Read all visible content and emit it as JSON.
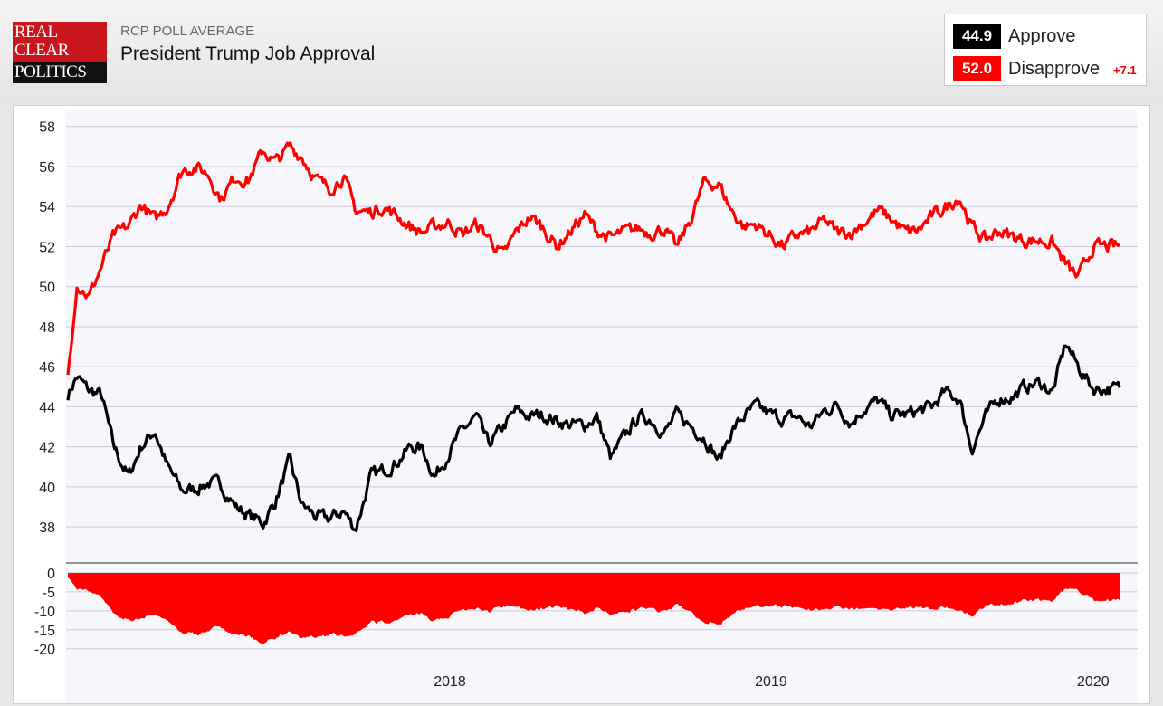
{
  "header": {
    "logo_lines": [
      "REAL",
      "CLEAR",
      "POLITICS"
    ],
    "subtitle": "RCP POLL AVERAGE",
    "title": "President Trump Job Approval"
  },
  "legend": {
    "approve": {
      "value": "44.9",
      "label": "Approve",
      "color": "#000000"
    },
    "disapprove": {
      "value": "52.0",
      "label": "Disapprove",
      "color": "#ff0000"
    },
    "spread": "+7.1"
  },
  "colors": {
    "approve": "#000000",
    "disapprove": "#ff0000",
    "spread_fill": "#ff0000",
    "grid": "#c8c8dc",
    "plot_bg": "#f7f7fb"
  },
  "chart_data": [
    {
      "type": "line",
      "title": "President Trump Job Approval",
      "x_tick_labels": [
        "2018",
        "2019",
        "2020"
      ],
      "y_ticks": [
        38,
        40,
        42,
        44,
        46,
        48,
        50,
        52,
        54,
        56,
        58
      ],
      "ylim": [
        36.2,
        58.8
      ],
      "grid": true,
      "legend": "top-right",
      "x": [
        "2017-01-22",
        "2017-02-01",
        "2017-02-15",
        "2017-03-01",
        "2017-03-15",
        "2017-04-01",
        "2017-04-15",
        "2017-05-01",
        "2017-05-15",
        "2017-06-01",
        "2017-06-15",
        "2017-07-01",
        "2017-07-15",
        "2017-08-01",
        "2017-08-15",
        "2017-09-01",
        "2017-09-15",
        "2017-10-01",
        "2017-10-15",
        "2017-11-01",
        "2017-11-15",
        "2017-12-01",
        "2017-12-15",
        "2018-01-01",
        "2018-01-15",
        "2018-02-01",
        "2018-02-15",
        "2018-03-01",
        "2018-03-15",
        "2018-04-01",
        "2018-04-15",
        "2018-05-01",
        "2018-05-15",
        "2018-06-01",
        "2018-06-15",
        "2018-07-01",
        "2018-07-15",
        "2018-08-01",
        "2018-08-15",
        "2018-09-01",
        "2018-09-15",
        "2018-10-01",
        "2018-10-15",
        "2018-11-01",
        "2018-11-15",
        "2018-12-01",
        "2018-12-15",
        "2019-01-01",
        "2019-01-15",
        "2019-02-01",
        "2019-02-15",
        "2019-03-01",
        "2019-03-15",
        "2019-04-01",
        "2019-04-15",
        "2019-05-01",
        "2019-05-15",
        "2019-06-01",
        "2019-06-15",
        "2019-07-01",
        "2019-07-15",
        "2019-08-01",
        "2019-08-15",
        "2019-09-01",
        "2019-09-15",
        "2019-10-01",
        "2019-10-15",
        "2019-11-01",
        "2019-11-15",
        "2019-12-01",
        "2019-12-15",
        "2020-01-01",
        "2020-01-15",
        "2020-02-01",
        "2020-02-15",
        "2020-03-01",
        "2020-03-15",
        "2020-04-01",
        "2020-04-15",
        "2020-05-01"
      ],
      "series": [
        {
          "name": "Approve",
          "values": [
            44.6,
            45.5,
            44.8,
            44.6,
            42.0,
            40.5,
            42.0,
            42.8,
            41.0,
            39.8,
            39.9,
            40.2,
            40.1,
            39.0,
            38.6,
            38.2,
            39.3,
            41.3,
            39.1,
            38.5,
            38.4,
            38.8,
            37.9,
            40.5,
            40.8,
            41.3,
            42.0,
            41.9,
            40.5,
            41.8,
            42.8,
            43.5,
            42.1,
            43.0,
            43.8,
            43.5,
            43.6,
            43.3,
            43.1,
            43.1,
            43.5,
            41.4,
            42.4,
            43.5,
            43.4,
            42.7,
            43.6,
            43.0,
            42.5,
            41.3,
            42.8,
            43.5,
            44.0,
            43.6,
            43.4,
            43.5,
            43.0,
            43.8,
            44.1,
            43.2,
            43.9,
            44.3,
            43.6,
            43.6,
            43.8,
            44.0,
            44.7,
            44.4,
            41.9,
            43.5,
            44.4,
            44.5,
            45.0,
            45.2,
            44.7,
            47.2,
            46.0,
            44.9,
            44.9,
            44.9
          ]
        },
        {
          "name": "Disapprove",
          "values": [
            45.5,
            50.2,
            49.5,
            51.0,
            52.5,
            53.0,
            54.1,
            53.3,
            54.0,
            55.8,
            56.0,
            55.6,
            54.4,
            55.5,
            55.3,
            56.8,
            56.2,
            57.0,
            56.5,
            55.3,
            54.9,
            55.5,
            53.8,
            53.7,
            54.0,
            53.5,
            53.0,
            52.7,
            53.0,
            53.2,
            52.6,
            53.1,
            52.5,
            51.5,
            52.7,
            53.5,
            53.0,
            52.0,
            52.7,
            53.6,
            52.8,
            52.4,
            52.7,
            52.9,
            52.7,
            52.9,
            51.9,
            53.5,
            55.2,
            55.1,
            53.8,
            53.0,
            53.1,
            52.5,
            52.0,
            52.6,
            52.7,
            53.3,
            52.7,
            52.7,
            53.2,
            53.8,
            53.4,
            52.7,
            52.8,
            53.5,
            53.9,
            54.5,
            53.0,
            52.3,
            52.8,
            52.5,
            52.3,
            52.3,
            52.2,
            51.1,
            50.4,
            52.0,
            52.0,
            52.0
          ]
        }
      ]
    },
    {
      "type": "area",
      "title": "",
      "x_tick_labels": [
        "2018",
        "2019",
        "2020"
      ],
      "y_ticks": [
        0,
        -5,
        -10,
        -15,
        -20
      ],
      "ylim": [
        -21.5,
        0
      ],
      "grid": true,
      "series": [
        {
          "name": "",
          "values": "Approve minus Disapprove (computed from the series above)"
        }
      ]
    }
  ]
}
